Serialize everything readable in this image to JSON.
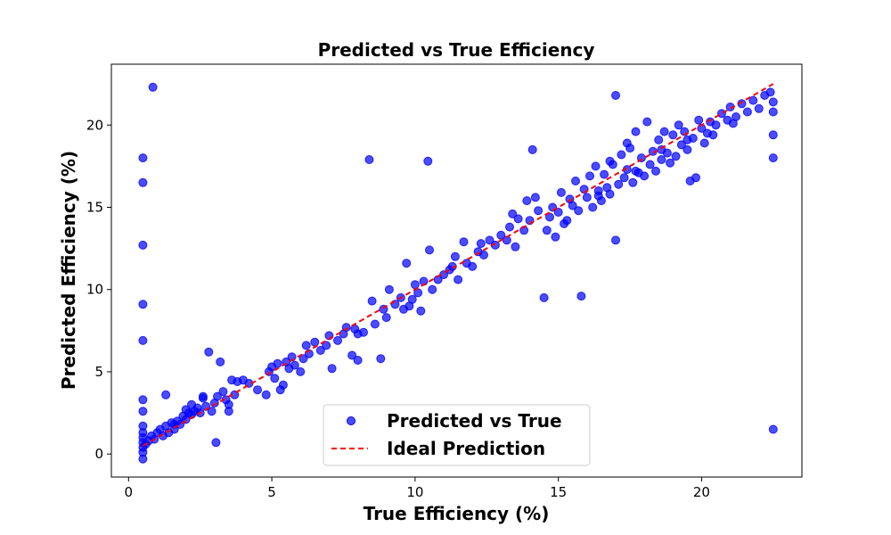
{
  "chart_data": {
    "type": "scatter",
    "title": "Predicted vs True Efficiency",
    "xlabel": "True Efficiency (%)",
    "ylabel": "Predicted Efficiency (%)",
    "xlim": [
      -0.6,
      23.5
    ],
    "ylim": [
      -1.4,
      23.7
    ],
    "xticks": [
      0,
      5,
      10,
      15,
      20
    ],
    "yticks": [
      0,
      5,
      10,
      15,
      20
    ],
    "grid": false,
    "legend_position": "lower-center",
    "colors": {
      "points": "#0000ff",
      "ideal": "#ff0000"
    },
    "series": [
      {
        "name": "Predicted vs True",
        "kind": "scatter",
        "points": [
          [
            0.85,
            22.3
          ],
          [
            0.5,
            18.0
          ],
          [
            0.5,
            16.5
          ],
          [
            0.5,
            12.7
          ],
          [
            0.5,
            9.1
          ],
          [
            0.5,
            6.9
          ],
          [
            0.5,
            3.3
          ],
          [
            0.5,
            2.6
          ],
          [
            0.5,
            1.7
          ],
          [
            0.5,
            1.3
          ],
          [
            0.5,
            1.0
          ],
          [
            0.5,
            0.7
          ],
          [
            0.5,
            0.4
          ],
          [
            0.5,
            0.1
          ],
          [
            0.5,
            -0.3
          ],
          [
            0.6,
            0.6
          ],
          [
            0.7,
            0.8
          ],
          [
            0.8,
            1.1
          ],
          [
            0.9,
            0.9
          ],
          [
            1.0,
            1.3
          ],
          [
            1.1,
            1.5
          ],
          [
            1.2,
            1.1
          ],
          [
            1.3,
            1.7
          ],
          [
            1.4,
            1.3
          ],
          [
            1.5,
            1.9
          ],
          [
            1.6,
            1.5
          ],
          [
            1.7,
            2.0
          ],
          [
            1.8,
            1.8
          ],
          [
            1.9,
            2.3
          ],
          [
            2.0,
            2.1
          ],
          [
            2.1,
            2.5
          ],
          [
            2.2,
            2.4
          ],
          [
            2.3,
            2.6
          ],
          [
            2.4,
            2.8
          ],
          [
            2.5,
            2.5
          ],
          [
            2.6,
            3.4
          ],
          [
            2.7,
            2.9
          ],
          [
            2.8,
            6.2
          ],
          [
            2.9,
            2.6
          ],
          [
            3.0,
            3.1
          ],
          [
            3.05,
            0.7
          ],
          [
            3.2,
            5.6
          ],
          [
            3.3,
            3.8
          ],
          [
            3.4,
            3.3
          ],
          [
            3.5,
            3.0
          ],
          [
            3.6,
            4.5
          ],
          [
            3.7,
            3.6
          ],
          [
            3.8,
            4.4
          ],
          [
            1.3,
            3.6
          ],
          [
            2.2,
            3.0
          ],
          [
            2.6,
            3.5
          ],
          [
            3.5,
            2.6
          ],
          [
            4.2,
            4.3
          ],
          [
            4.5,
            3.9
          ],
          [
            4.8,
            3.6
          ],
          [
            4.9,
            5.0
          ],
          [
            5.0,
            5.3
          ],
          [
            5.1,
            4.6
          ],
          [
            5.2,
            5.5
          ],
          [
            5.3,
            3.9
          ],
          [
            5.4,
            4.2
          ],
          [
            5.5,
            5.6
          ],
          [
            5.6,
            5.2
          ],
          [
            5.7,
            5.9
          ],
          [
            5.8,
            5.4
          ],
          [
            6.0,
            5.0
          ],
          [
            6.1,
            5.8
          ],
          [
            6.3,
            6.1
          ],
          [
            6.5,
            6.8
          ],
          [
            6.7,
            6.3
          ],
          [
            6.9,
            6.6
          ],
          [
            7.0,
            7.2
          ],
          [
            7.1,
            5.2
          ],
          [
            7.3,
            6.9
          ],
          [
            7.5,
            7.3
          ],
          [
            7.6,
            7.7
          ],
          [
            7.8,
            6.0
          ],
          [
            7.9,
            7.6
          ],
          [
            8.0,
            5.7
          ],
          [
            8.2,
            7.4
          ],
          [
            8.4,
            17.9
          ],
          [
            8.5,
            9.3
          ],
          [
            8.6,
            7.9
          ],
          [
            8.8,
            5.8
          ],
          [
            8.9,
            8.8
          ],
          [
            9.0,
            8.3
          ],
          [
            9.1,
            10.0
          ],
          [
            9.3,
            9.1
          ],
          [
            9.5,
            9.5
          ],
          [
            9.6,
            8.8
          ],
          [
            9.7,
            11.6
          ],
          [
            9.9,
            9.4
          ],
          [
            10.0,
            10.3
          ],
          [
            10.1,
            9.8
          ],
          [
            10.2,
            8.7
          ],
          [
            10.3,
            10.5
          ],
          [
            10.45,
            17.8
          ],
          [
            10.5,
            12.4
          ],
          [
            10.6,
            10.0
          ],
          [
            10.8,
            10.6
          ],
          [
            11.0,
            10.9
          ],
          [
            11.2,
            11.2
          ],
          [
            11.4,
            12.0
          ],
          [
            11.5,
            10.6
          ],
          [
            11.7,
            12.9
          ],
          [
            11.8,
            11.6
          ],
          [
            12.0,
            11.4
          ],
          [
            12.2,
            12.3
          ],
          [
            12.4,
            12.1
          ],
          [
            12.6,
            13.0
          ],
          [
            12.8,
            12.7
          ],
          [
            13.0,
            13.3
          ],
          [
            13.2,
            13.0
          ],
          [
            13.3,
            13.8
          ],
          [
            13.5,
            12.6
          ],
          [
            13.6,
            14.3
          ],
          [
            13.8,
            13.6
          ],
          [
            13.9,
            15.4
          ],
          [
            14.0,
            14.2
          ],
          [
            14.1,
            18.5
          ],
          [
            14.2,
            15.6
          ],
          [
            14.3,
            14.8
          ],
          [
            14.5,
            9.5
          ],
          [
            14.6,
            13.6
          ],
          [
            14.7,
            14.4
          ],
          [
            14.8,
            15.0
          ],
          [
            15.0,
            14.7
          ],
          [
            15.1,
            15.9
          ],
          [
            15.3,
            14.2
          ],
          [
            15.4,
            15.5
          ],
          [
            15.5,
            15.1
          ],
          [
            15.6,
            16.6
          ],
          [
            15.7,
            14.8
          ],
          [
            15.8,
            9.6
          ],
          [
            15.9,
            16.1
          ],
          [
            16.0,
            15.6
          ],
          [
            16.1,
            16.9
          ],
          [
            16.2,
            15.0
          ],
          [
            16.3,
            17.5
          ],
          [
            16.4,
            16.0
          ],
          [
            16.5,
            15.4
          ],
          [
            16.6,
            17.0
          ],
          [
            16.7,
            16.2
          ],
          [
            16.8,
            15.8
          ],
          [
            16.9,
            17.6
          ],
          [
            17.0,
            13.0
          ],
          [
            17.0,
            21.8
          ],
          [
            17.1,
            16.4
          ],
          [
            17.2,
            18.2
          ],
          [
            17.3,
            16.8
          ],
          [
            17.4,
            17.3
          ],
          [
            17.5,
            18.6
          ],
          [
            17.6,
            16.5
          ],
          [
            17.7,
            19.6
          ],
          [
            17.8,
            17.1
          ],
          [
            17.9,
            18.0
          ],
          [
            18.0,
            16.9
          ],
          [
            18.1,
            20.2
          ],
          [
            18.2,
            17.6
          ],
          [
            18.3,
            18.4
          ],
          [
            18.4,
            17.2
          ],
          [
            18.5,
            19.1
          ],
          [
            18.6,
            17.9
          ],
          [
            18.7,
            19.6
          ],
          [
            18.8,
            18.3
          ],
          [
            18.9,
            17.7
          ],
          [
            19.0,
            19.4
          ],
          [
            19.1,
            18.1
          ],
          [
            19.2,
            20.0
          ],
          [
            19.3,
            18.8
          ],
          [
            19.4,
            19.6
          ],
          [
            19.5,
            18.5
          ],
          [
            19.6,
            16.6
          ],
          [
            19.7,
            19.2
          ],
          [
            19.8,
            16.8
          ],
          [
            19.9,
            20.3
          ],
          [
            20.0,
            19.8
          ],
          [
            20.1,
            18.9
          ],
          [
            20.2,
            19.5
          ],
          [
            20.3,
            20.2
          ],
          [
            20.5,
            20.0
          ],
          [
            20.7,
            20.7
          ],
          [
            20.9,
            20.3
          ],
          [
            21.0,
            21.1
          ],
          [
            21.2,
            20.5
          ],
          [
            21.4,
            21.3
          ],
          [
            21.6,
            20.8
          ],
          [
            21.8,
            21.5
          ],
          [
            22.0,
            21.0
          ],
          [
            22.2,
            21.8
          ],
          [
            22.4,
            22.0
          ],
          [
            22.5,
            21.4
          ],
          [
            22.5,
            20.8
          ],
          [
            22.5,
            19.4
          ],
          [
            22.5,
            18.0
          ],
          [
            22.5,
            1.5
          ],
          [
            17.4,
            18.9
          ],
          [
            16.4,
            15.7
          ],
          [
            15.2,
            14.0
          ],
          [
            18.6,
            18.5
          ],
          [
            19.5,
            19.1
          ],
          [
            21.1,
            20.1
          ],
          [
            17.7,
            17.2
          ],
          [
            14.9,
            13.2
          ],
          [
            13.4,
            14.6
          ],
          [
            12.3,
            12.8
          ],
          [
            11.3,
            11.4
          ],
          [
            9.8,
            9.0
          ],
          [
            8.0,
            7.3
          ],
          [
            6.2,
            6.6
          ],
          [
            4.0,
            4.5
          ],
          [
            3.1,
            3.5
          ],
          [
            2.0,
            2.7
          ],
          [
            1.6,
            1.8
          ],
          [
            16.8,
            17.8
          ],
          [
            20.4,
            19.4
          ]
        ]
      },
      {
        "name": "Ideal Prediction",
        "kind": "line",
        "style": "dashed",
        "points": [
          [
            0.5,
            0.5
          ],
          [
            22.5,
            22.5
          ]
        ]
      }
    ]
  }
}
